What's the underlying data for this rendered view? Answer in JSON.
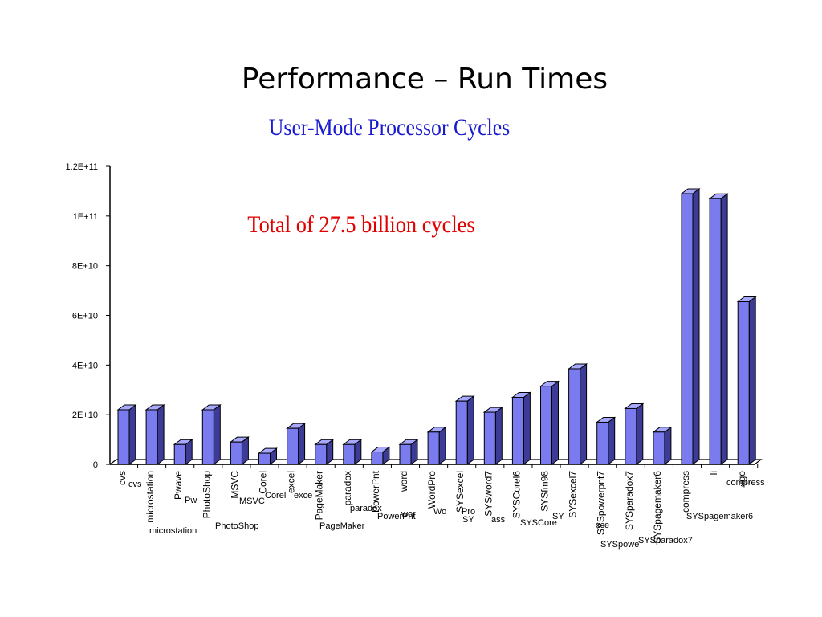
{
  "slide": {
    "title": "Performance – Run Times"
  },
  "chart_data": {
    "type": "bar",
    "title": "User-Mode Processor Cycles",
    "annotation": "Total of 27.5 billion cycles",
    "xlabel": "",
    "ylabel": "",
    "ylim": [
      0,
      120000000000
    ],
    "yticks": [
      0,
      20000000000,
      40000000000,
      60000000000,
      80000000000,
      100000000000,
      120000000000
    ],
    "ytick_labels": [
      "0",
      "2E+10",
      "4E+10",
      "6E+10",
      "8E+10",
      "1E+11",
      "1.2E+11"
    ],
    "grid": false,
    "legend": "none",
    "bar_color": "#7b7bf0",
    "bar_side_color": "#3c3c96",
    "bar_top_color": "#a8a8ff",
    "categories": [
      "cvs",
      "microstation",
      "Pwave",
      "PhotoShop",
      "MSVC",
      "Corel",
      "excel",
      "PageMaker",
      "paradox",
      "PowerPnt",
      "word",
      "WordPro",
      "SYSexcel",
      "SYSword7",
      "SYSCorel6",
      "SYSfm98",
      "SYSexcel7",
      "SYSpowerpnt7",
      "SYSparadox7",
      "SYSpagemaker6",
      "compress",
      "li",
      "go"
    ],
    "values": [
      22000000000,
      22000000000,
      8000000000,
      22000000000,
      9000000000,
      4500000000,
      14500000000,
      8000000000,
      8000000000,
      5000000000,
      8000000000,
      13000000000,
      25500000000,
      21000000000,
      27000000000,
      31500000000,
      38500000000,
      17000000000,
      22500000000,
      13000000000,
      109000000000,
      107000000000,
      65500000000
    ],
    "rotated_labels": [
      "cvs",
      "microstation",
      "Pwave",
      "PhotoShop",
      "MSVC",
      "Corel",
      "excel",
      "PageMaker",
      "paradox",
      "PowerPnt",
      "word",
      "WordPro",
      "SYSexcel",
      "SYSword7",
      "SYSCorel6",
      "SYSfm98",
      "SYSexcel7",
      "SYSpowerpnt7",
      "SYSparadox7",
      "SYSpagemaker6",
      "compress",
      "li",
      "go"
    ],
    "horizontal_labels": [
      "cvs",
      "microstation",
      "Pw",
      "PhotoShop",
      "MSVC",
      "Corel",
      "exce",
      "PageMaker",
      "paradox",
      "PowerPnt",
      "wor",
      "Wo",
      "Pro",
      "SY",
      "ass",
      "SYSCore",
      "SY",
      "xce",
      "SYSpowe",
      "SYSparadox7",
      "SYSpagemaker6",
      "compress",
      "go"
    ]
  }
}
